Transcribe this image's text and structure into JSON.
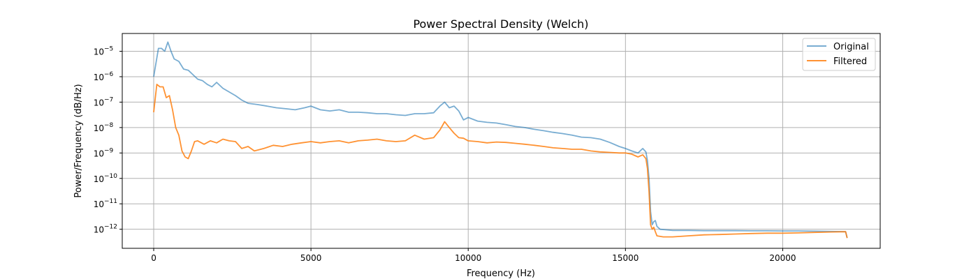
{
  "chart_data": {
    "type": "line",
    "title": "Power Spectral Density (Welch)",
    "xlabel": "Frequency (Hz)",
    "ylabel": "Power/Frequency (dB/Hz)",
    "xlim": [
      -1000,
      23100
    ],
    "ylim_log10": [
      -12.75,
      -4.3
    ],
    "y_scale": "log",
    "grid": true,
    "legend": "top-right",
    "x_ticks": [
      0,
      5000,
      10000,
      15000,
      20000
    ],
    "x_tick_labels": [
      "0",
      "5000",
      "10000",
      "15000",
      "20000"
    ],
    "y_ticks": [
      {
        "exp": -12,
        "label": "10",
        "sup": "−12"
      },
      {
        "exp": -11,
        "label": "10",
        "sup": "−11"
      },
      {
        "exp": -10,
        "label": "10",
        "sup": "−10"
      },
      {
        "exp": -9,
        "label": "10",
        "sup": "−9"
      },
      {
        "exp": -8,
        "label": "10",
        "sup": "−8"
      },
      {
        "exp": -7,
        "label": "10",
        "sup": "−7"
      },
      {
        "exp": -6,
        "label": "10",
        "sup": "−6"
      },
      {
        "exp": -5,
        "label": "10",
        "sup": "−5"
      }
    ],
    "series": [
      {
        "name": "Original",
        "color": "#1f77b4",
        "opacity": 0.6,
        "x": [
          0,
          150,
          250,
          350,
          450,
          550,
          650,
          800,
          950,
          1100,
          1250,
          1400,
          1550,
          1700,
          1850,
          2000,
          2200,
          2400,
          2600,
          2800,
          3000,
          3300,
          3600,
          3900,
          4200,
          4500,
          4800,
          5000,
          5300,
          5600,
          5900,
          6200,
          6500,
          6800,
          7100,
          7400,
          7700,
          8000,
          8300,
          8600,
          8900,
          9100,
          9250,
          9400,
          9550,
          9700,
          9850,
          10000,
          10300,
          10600,
          10900,
          11200,
          11500,
          11800,
          12100,
          12400,
          12700,
          13000,
          13300,
          13600,
          13900,
          14200,
          14500,
          14800,
          15000,
          15200,
          15400,
          15550,
          15650,
          15700,
          15750,
          15800,
          15850,
          15900,
          15950,
          16000,
          16100,
          16300,
          16500,
          17000,
          17500,
          18000,
          18500,
          19000,
          19500,
          20000,
          20500,
          21000,
          21500,
          22000,
          22050
        ],
        "y": [
          1e-06,
          1.3e-05,
          1.3e-05,
          1e-05,
          2.3e-05,
          1e-05,
          5e-06,
          4e-06,
          2e-06,
          1.8e-06,
          1.2e-06,
          8e-07,
          7e-07,
          5e-07,
          4e-07,
          6e-07,
          3.5e-07,
          2.5e-07,
          1.8e-07,
          1.2e-07,
          9e-08,
          8e-08,
          7e-08,
          6e-08,
          5.5e-08,
          5e-08,
          6e-08,
          7e-08,
          5e-08,
          4.5e-08,
          5e-08,
          4e-08,
          4e-08,
          3.8e-08,
          3.5e-08,
          3.5e-08,
          3.2e-08,
          3e-08,
          3.5e-08,
          3.5e-08,
          3.8e-08,
          7e-08,
          1e-07,
          6e-08,
          7e-08,
          4.5e-08,
          2e-08,
          2.5e-08,
          1.8e-08,
          1.6e-08,
          1.5e-08,
          1.3e-08,
          1.1e-08,
          1e-08,
          8.5e-09,
          7.5e-09,
          6.5e-09,
          5.8e-09,
          5e-09,
          4.2e-09,
          4e-09,
          3.5e-09,
          2.6e-09,
          1.8e-09,
          1.5e-09,
          1.2e-09,
          1e-09,
          1.5e-09,
          1.1e-09,
          5e-10,
          1e-10,
          5e-12,
          1.5e-12,
          2e-12,
          2.2e-12,
          1.3e-12,
          1e-12,
          9.5e-13,
          9e-13,
          9e-13,
          8.8e-13,
          8.8e-13,
          8.8e-13,
          8.7e-13,
          8.7e-13,
          8.6e-13,
          8.6e-13,
          8.4e-13,
          8.2e-13,
          8e-13,
          4.6e-13
        ]
      },
      {
        "name": "Filtered",
        "color": "#ff7f0e",
        "opacity": 0.85,
        "x": [
          0,
          100,
          200,
          300,
          400,
          500,
          600,
          700,
          800,
          900,
          1000,
          1100,
          1200,
          1300,
          1400,
          1600,
          1800,
          2000,
          2200,
          2400,
          2600,
          2800,
          3000,
          3200,
          3500,
          3800,
          4100,
          4400,
          4700,
          5000,
          5300,
          5600,
          5900,
          6200,
          6500,
          6800,
          7100,
          7400,
          7700,
          8000,
          8300,
          8600,
          8900,
          9100,
          9250,
          9400,
          9550,
          9700,
          9850,
          10000,
          10300,
          10600,
          10900,
          11200,
          11500,
          11800,
          12100,
          12400,
          12700,
          13000,
          13300,
          13600,
          13900,
          14200,
          14500,
          14800,
          15000,
          15200,
          15400,
          15550,
          15650,
          15700,
          15750,
          15800,
          15850,
          15900,
          15950,
          16000,
          16200,
          16500,
          17000,
          17500,
          18000,
          18500,
          19000,
          19500,
          20000,
          20500,
          21000,
          21500,
          22000,
          22050
        ],
        "y": [
          4e-08,
          5e-07,
          4e-07,
          4e-07,
          1.5e-07,
          1.8e-07,
          5e-08,
          1e-08,
          5e-09,
          1.2e-09,
          7e-10,
          6e-10,
          1.2e-09,
          2.8e-09,
          3e-09,
          2.2e-09,
          3e-09,
          2.5e-09,
          3.5e-09,
          3e-09,
          2.8e-09,
          1.5e-09,
          1.8e-09,
          1.2e-09,
          1.5e-09,
          2e-09,
          1.8e-09,
          2.2e-09,
          2.5e-09,
          2.8e-09,
          2.5e-09,
          2.8e-09,
          3e-09,
          2.5e-09,
          3e-09,
          3.2e-09,
          3.5e-09,
          3e-09,
          2.8e-09,
          3e-09,
          5e-09,
          3.5e-09,
          4e-09,
          8e-09,
          1.7e-08,
          1e-08,
          6e-09,
          4e-09,
          3.8e-09,
          3e-09,
          2.8e-09,
          2.5e-09,
          2.7e-09,
          2.6e-09,
          2.4e-09,
          2.2e-09,
          2e-09,
          1.8e-09,
          1.6e-09,
          1.5e-09,
          1.4e-09,
          1.4e-09,
          1.2e-09,
          1.1e-09,
          1.05e-09,
          1e-09,
          1e-09,
          9e-10,
          7e-10,
          8.5e-10,
          6e-10,
          2.5e-10,
          3e-11,
          1.5e-12,
          1e-12,
          1.2e-12,
          8e-13,
          5.5e-13,
          5e-13,
          5e-13,
          5.5e-13,
          6e-13,
          6.2e-13,
          6.5e-13,
          6.8e-13,
          7e-13,
          7e-13,
          7.2e-13,
          7.5e-13,
          7.8e-13,
          8e-13,
          4.5e-13
        ]
      }
    ]
  }
}
